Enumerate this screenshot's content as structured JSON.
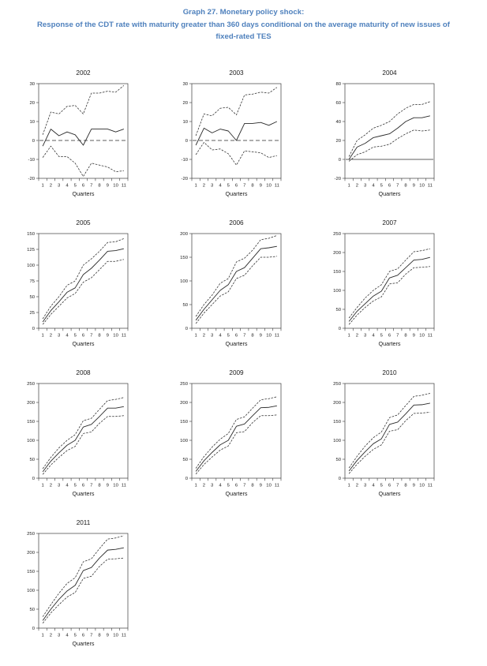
{
  "page": {
    "title_line1": "Graph 27. Monetary policy shock:",
    "title_line2": "Response of the CDT rate with maturity greater than 360 days conditional on the average maturity of new issues of",
    "title_line3": "fixed-rated TES",
    "title_color": "#4f81bd"
  },
  "chart_style": {
    "line_color": "#2a2a2a",
    "box_color": "#3a3a3a",
    "band_dash": "2.6 1.5",
    "zero_dash": "5 3"
  },
  "chart_data": [
    {
      "type": "line",
      "title": "2002",
      "xlabel": "Quarters",
      "x": [
        1,
        2,
        3,
        4,
        5,
        6,
        7,
        8,
        9,
        10,
        11
      ],
      "ylim": [
        -20,
        30
      ],
      "ytick_step": 10,
      "zero_line": "dashed",
      "legend": "none",
      "grid": false,
      "series": [
        {
          "name": "upper-band",
          "style": "dashed",
          "values": [
            3,
            15,
            14,
            18,
            18.5,
            14,
            25,
            25,
            26,
            25.5,
            29
          ]
        },
        {
          "name": "response",
          "style": "solid",
          "values": [
            -3,
            6,
            2.5,
            4.5,
            3,
            -2.5,
            6,
            6,
            6,
            4.5,
            6
          ]
        },
        {
          "name": "lower-band",
          "style": "dashed",
          "values": [
            -9,
            -3,
            -8.5,
            -8.5,
            -12,
            -19,
            -12,
            -13,
            -14,
            -16.5,
            -16
          ]
        }
      ]
    },
    {
      "type": "line",
      "title": "2003",
      "xlabel": "Quarters",
      "x": [
        1,
        2,
        3,
        4,
        5,
        6,
        7,
        8,
        9,
        10,
        11
      ],
      "ylim": [
        -20,
        30
      ],
      "ytick_step": 10,
      "zero_line": "dashed",
      "legend": "none",
      "grid": false,
      "series": [
        {
          "name": "upper-band",
          "style": "dashed",
          "values": [
            2.5,
            14,
            13,
            17,
            17.5,
            13.5,
            24,
            24.5,
            25.5,
            25,
            28
          ]
        },
        {
          "name": "response",
          "style": "solid",
          "values": [
            -2.5,
            6.5,
            4,
            6,
            5,
            0,
            9,
            9,
            9.5,
            8,
            10
          ]
        },
        {
          "name": "lower-band",
          "style": "dashed",
          "values": [
            -7.5,
            -1,
            -5,
            -4.5,
            -7,
            -13,
            -5.5,
            -6,
            -6.5,
            -9,
            -8
          ]
        }
      ]
    },
    {
      "type": "line",
      "title": "2004",
      "xlabel": "Quarters",
      "x": [
        1,
        2,
        3,
        4,
        5,
        6,
        7,
        8,
        9,
        10,
        11
      ],
      "ylim": [
        -20,
        80
      ],
      "ytick_step": 20,
      "zero_line": "solid",
      "legend": "none",
      "grid": false,
      "series": [
        {
          "name": "upper-band",
          "style": "dashed",
          "values": [
            3,
            20,
            26,
            33,
            36,
            40,
            48,
            54,
            58,
            58,
            61
          ]
        },
        {
          "name": "response",
          "style": "solid",
          "values": [
            0,
            13,
            17,
            23,
            25,
            27,
            33,
            40,
            44,
            44,
            46
          ]
        },
        {
          "name": "lower-band",
          "style": "dashed",
          "values": [
            -2,
            5,
            8,
            13,
            14,
            16,
            22,
            27,
            31,
            30,
            31
          ]
        }
      ]
    },
    {
      "type": "line",
      "title": "2005",
      "xlabel": "Quarters",
      "x": [
        1,
        2,
        3,
        4,
        5,
        6,
        7,
        8,
        9,
        10,
        11
      ],
      "ylim": [
        0,
        150
      ],
      "ytick_step": 25,
      "zero_line": null,
      "legend": "none",
      "grid": false,
      "series": [
        {
          "name": "upper-band",
          "style": "dashed",
          "values": [
            15,
            35,
            50,
            68,
            75,
            100,
            110,
            122,
            136,
            137,
            142
          ]
        },
        {
          "name": "response",
          "style": "solid",
          "values": [
            10,
            28,
            42,
            57,
            64,
            85,
            95,
            108,
            122,
            123,
            126
          ]
        },
        {
          "name": "lower-band",
          "style": "dashed",
          "values": [
            6,
            22,
            35,
            48,
            55,
            73,
            80,
            93,
            106,
            106,
            109
          ]
        }
      ]
    },
    {
      "type": "line",
      "title": "2006",
      "xlabel": "Quarters",
      "x": [
        1,
        2,
        3,
        4,
        5,
        6,
        7,
        8,
        9,
        10,
        11
      ],
      "ylim": [
        0,
        200
      ],
      "ytick_step": 50,
      "zero_line": null,
      "legend": "none",
      "grid": false,
      "series": [
        {
          "name": "upper-band",
          "style": "dashed",
          "values": [
            25,
            50,
            70,
            95,
            105,
            140,
            148,
            165,
            187,
            190,
            196
          ]
        },
        {
          "name": "response",
          "style": "solid",
          "values": [
            17,
            40,
            60,
            80,
            92,
            120,
            128,
            148,
            168,
            170,
            173
          ]
        },
        {
          "name": "lower-band",
          "style": "dashed",
          "values": [
            10,
            32,
            50,
            68,
            77,
            105,
            112,
            132,
            150,
            150,
            152
          ]
        }
      ]
    },
    {
      "type": "line",
      "title": "2007",
      "xlabel": "Quarters",
      "x": [
        1,
        2,
        3,
        4,
        5,
        6,
        7,
        8,
        9,
        10,
        11
      ],
      "ylim": [
        0,
        250
      ],
      "ytick_step": 50,
      "zero_line": null,
      "legend": "none",
      "grid": false,
      "series": [
        {
          "name": "upper-band",
          "style": "dashed",
          "values": [
            27,
            55,
            80,
            100,
            115,
            150,
            157,
            180,
            202,
            205,
            210
          ]
        },
        {
          "name": "response",
          "style": "solid",
          "values": [
            18,
            45,
            65,
            85,
            98,
            133,
            140,
            160,
            180,
            182,
            187
          ]
        },
        {
          "name": "lower-band",
          "style": "dashed",
          "values": [
            10,
            35,
            55,
            72,
            83,
            117,
            120,
            143,
            160,
            161,
            163
          ]
        }
      ]
    },
    {
      "type": "line",
      "title": "2008",
      "xlabel": "Quarters",
      "x": [
        1,
        2,
        3,
        4,
        5,
        6,
        7,
        8,
        9,
        10,
        11
      ],
      "ylim": [
        0,
        250
      ],
      "ytick_step": 50,
      "zero_line": null,
      "legend": "none",
      "grid": false,
      "series": [
        {
          "name": "upper-band",
          "style": "dashed",
          "values": [
            25,
            55,
            80,
            100,
            115,
            152,
            158,
            182,
            205,
            208,
            213
          ]
        },
        {
          "name": "response",
          "style": "solid",
          "values": [
            17,
            45,
            67,
            87,
            100,
            135,
            142,
            163,
            185,
            185,
            189
          ]
        },
        {
          "name": "lower-band",
          "style": "dashed",
          "values": [
            10,
            35,
            55,
            73,
            84,
            118,
            122,
            145,
            163,
            163,
            165
          ]
        }
      ]
    },
    {
      "type": "line",
      "title": "2009",
      "xlabel": "Quarters",
      "x": [
        1,
        2,
        3,
        4,
        5,
        6,
        7,
        8,
        9,
        10,
        11
      ],
      "ylim": [
        0,
        250
      ],
      "ytick_step": 50,
      "zero_line": null,
      "legend": "none",
      "grid": false,
      "series": [
        {
          "name": "upper-band",
          "style": "dashed",
          "values": [
            26,
            57,
            82,
            103,
            118,
            155,
            162,
            185,
            207,
            210,
            215
          ]
        },
        {
          "name": "response",
          "style": "solid",
          "values": [
            18,
            46,
            68,
            88,
            100,
            137,
            143,
            165,
            186,
            187,
            191
          ]
        },
        {
          "name": "lower-band",
          "style": "dashed",
          "values": [
            11,
            36,
            56,
            74,
            85,
            120,
            123,
            147,
            165,
            165,
            167
          ]
        }
      ]
    },
    {
      "type": "line",
      "title": "2010",
      "xlabel": "Quarters",
      "x": [
        1,
        2,
        3,
        4,
        5,
        6,
        7,
        8,
        9,
        10,
        11
      ],
      "ylim": [
        0,
        250
      ],
      "ytick_step": 50,
      "zero_line": null,
      "legend": "none",
      "grid": false,
      "series": [
        {
          "name": "upper-band",
          "style": "dashed",
          "values": [
            27,
            58,
            85,
            107,
            122,
            160,
            167,
            192,
            216,
            219,
            224
          ]
        },
        {
          "name": "response",
          "style": "solid",
          "values": [
            19,
            47,
            70,
            91,
            104,
            142,
            148,
            170,
            193,
            194,
            198
          ]
        },
        {
          "name": "lower-band",
          "style": "dashed",
          "values": [
            12,
            37,
            58,
            76,
            88,
            124,
            128,
            152,
            171,
            172,
            174
          ]
        }
      ]
    },
    {
      "type": "line",
      "title": "2011",
      "xlabel": "Quarters",
      "x": [
        1,
        2,
        3,
        4,
        5,
        6,
        7,
        8,
        9,
        10,
        11
      ],
      "ylim": [
        0,
        250
      ],
      "ytick_step": 50,
      "zero_line": null,
      "legend": "none",
      "grid": false,
      "series": [
        {
          "name": "upper-band",
          "style": "dashed",
          "values": [
            30,
            62,
            92,
            118,
            133,
            175,
            183,
            210,
            235,
            238,
            244
          ]
        },
        {
          "name": "response",
          "style": "solid",
          "values": [
            20,
            50,
            76,
            98,
            113,
            152,
            160,
            185,
            206,
            208,
            212
          ]
        },
        {
          "name": "lower-band",
          "style": "dashed",
          "values": [
            13,
            40,
            62,
            82,
            94,
            131,
            137,
            163,
            182,
            183,
            185
          ]
        }
      ]
    }
  ]
}
